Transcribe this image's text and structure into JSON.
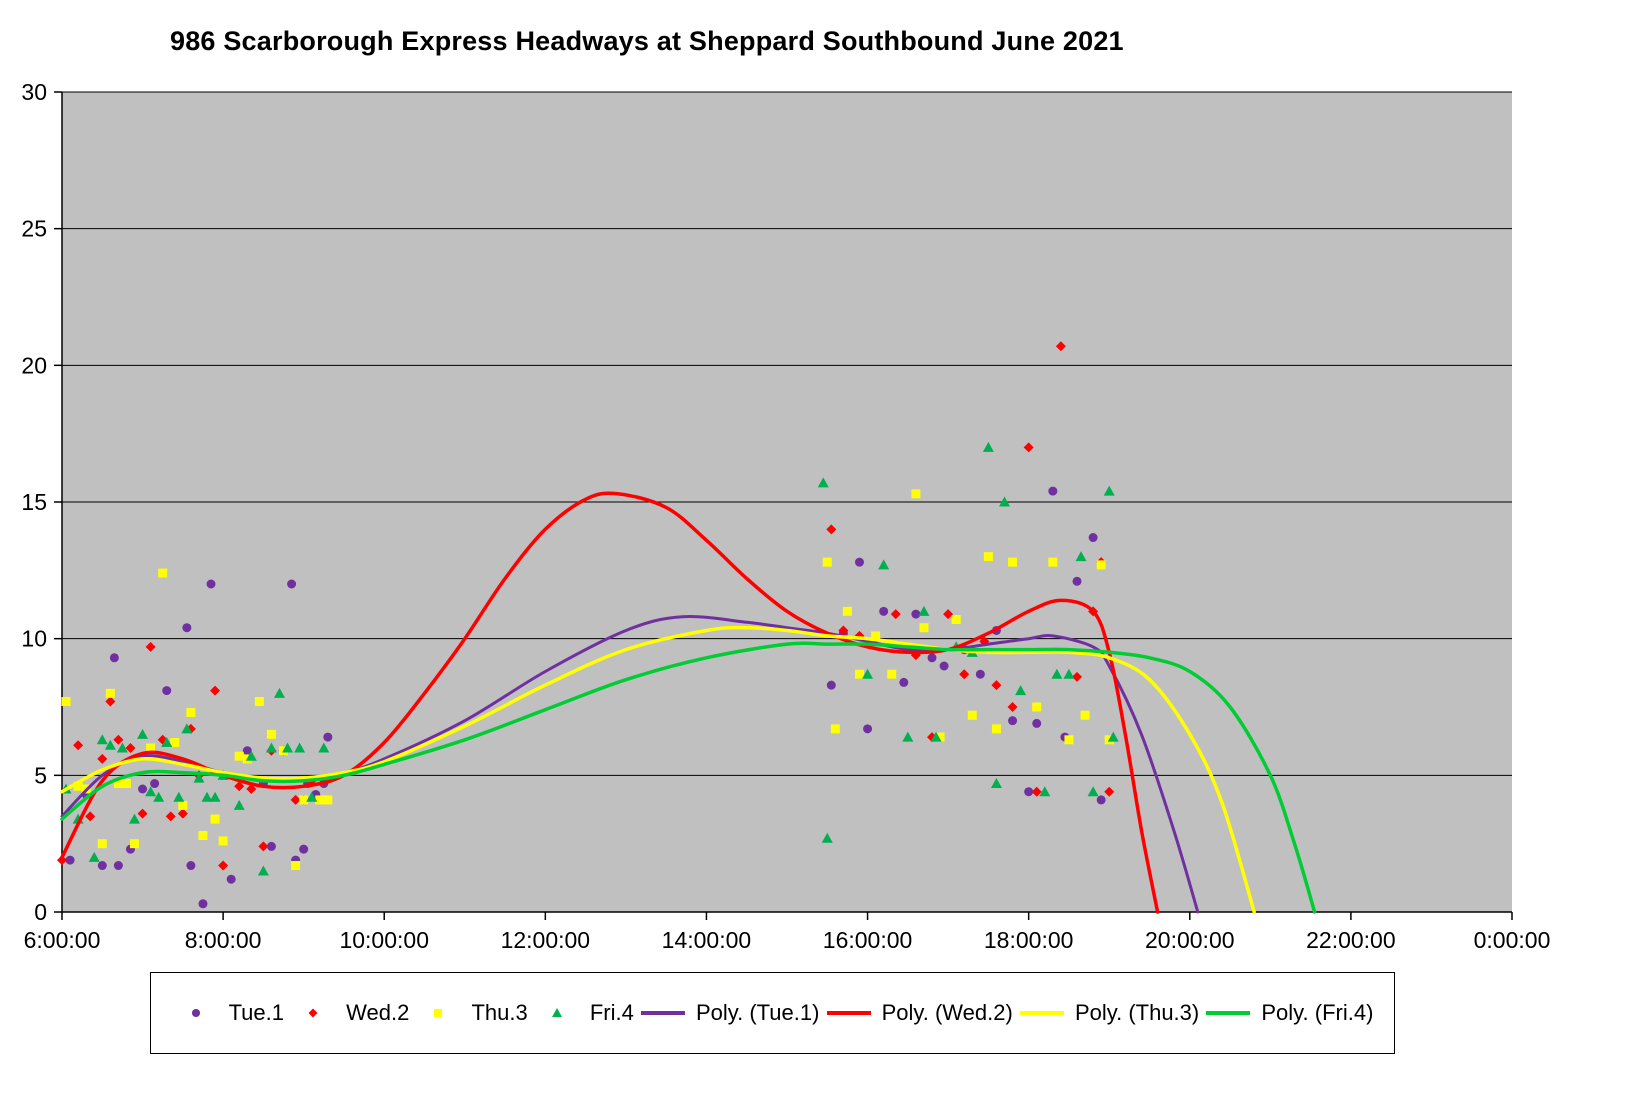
{
  "title": "986 Scarborough Express Headways at Sheppard Southbound June 2021",
  "chart_data": {
    "type": "scatter",
    "title": "986 Scarborough Express Headways at Sheppard Southbound June 2021",
    "xlabel": "",
    "ylabel": "",
    "xlim": [
      6,
      24
    ],
    "ylim": [
      0,
      30
    ],
    "grid": true,
    "plot_background": "#C0C0C0",
    "gridline_color": "#000000",
    "legend_position": "bottom",
    "x_ticks": [
      {
        "value": 6,
        "label": "6:00:00"
      },
      {
        "value": 8,
        "label": "8:00:00"
      },
      {
        "value": 10,
        "label": "10:00:00"
      },
      {
        "value": 12,
        "label": "12:00:00"
      },
      {
        "value": 14,
        "label": "14:00:00"
      },
      {
        "value": 16,
        "label": "16:00:00"
      },
      {
        "value": 18,
        "label": "18:00:00"
      },
      {
        "value": 20,
        "label": "20:00:00"
      },
      {
        "value": 22,
        "label": "22:00:00"
      },
      {
        "value": 24,
        "label": "0:00:00"
      }
    ],
    "y_ticks": [
      0,
      5,
      10,
      15,
      20,
      25,
      30
    ],
    "series": [
      {
        "id": "tue1",
        "label": "Tue.1",
        "marker": "circle",
        "color": "#7030A0",
        "points": [
          [
            6.1,
            1.9
          ],
          [
            6.3,
            4.3
          ],
          [
            6.5,
            1.7
          ],
          [
            6.65,
            9.3
          ],
          [
            6.7,
            1.7
          ],
          [
            6.85,
            2.3
          ],
          [
            7.0,
            4.5
          ],
          [
            7.15,
            4.7
          ],
          [
            7.3,
            8.1
          ],
          [
            7.55,
            10.4
          ],
          [
            7.6,
            1.7
          ],
          [
            7.75,
            0.3
          ],
          [
            7.85,
            12.0
          ],
          [
            8.1,
            1.2
          ],
          [
            8.3,
            5.9
          ],
          [
            8.5,
            4.7
          ],
          [
            8.6,
            2.4
          ],
          [
            8.85,
            12.0
          ],
          [
            8.9,
            1.9
          ],
          [
            9.0,
            2.3
          ],
          [
            9.05,
            4.7
          ],
          [
            9.15,
            4.3
          ],
          [
            9.25,
            4.7
          ],
          [
            9.3,
            6.4
          ],
          [
            15.55,
            8.3
          ],
          [
            15.7,
            10.2
          ],
          [
            15.9,
            12.8
          ],
          [
            16.0,
            6.7
          ],
          [
            16.2,
            11.0
          ],
          [
            16.45,
            8.4
          ],
          [
            16.6,
            10.9
          ],
          [
            16.8,
            9.3
          ],
          [
            16.95,
            9.0
          ],
          [
            17.2,
            9.6
          ],
          [
            17.4,
            8.7
          ],
          [
            17.6,
            10.3
          ],
          [
            17.8,
            7.0
          ],
          [
            18.0,
            4.4
          ],
          [
            18.1,
            6.9
          ],
          [
            18.3,
            15.4
          ],
          [
            18.45,
            6.4
          ],
          [
            18.6,
            12.1
          ],
          [
            18.8,
            13.7
          ],
          [
            18.9,
            4.1
          ]
        ]
      },
      {
        "id": "wed2",
        "label": "Wed.2",
        "marker": "diamond",
        "color": "#FF0000",
        "points": [
          [
            6.0,
            1.9
          ],
          [
            6.2,
            6.1
          ],
          [
            6.35,
            3.5
          ],
          [
            6.5,
            5.6
          ],
          [
            6.6,
            7.7
          ],
          [
            6.7,
            6.3
          ],
          [
            6.85,
            6.0
          ],
          [
            7.0,
            3.6
          ],
          [
            7.1,
            9.7
          ],
          [
            7.25,
            6.3
          ],
          [
            7.35,
            3.5
          ],
          [
            7.5,
            3.6
          ],
          [
            7.6,
            6.7
          ],
          [
            7.7,
            5.0
          ],
          [
            7.9,
            8.1
          ],
          [
            8.0,
            1.7
          ],
          [
            8.2,
            4.6
          ],
          [
            8.35,
            4.5
          ],
          [
            8.5,
            2.4
          ],
          [
            8.6,
            5.9
          ],
          [
            8.75,
            5.9
          ],
          [
            8.9,
            4.1
          ],
          [
            9.0,
            4.1
          ],
          [
            9.1,
            4.8
          ],
          [
            15.55,
            14.0
          ],
          [
            15.7,
            10.3
          ],
          [
            15.9,
            10.1
          ],
          [
            16.1,
            10.0
          ],
          [
            16.35,
            10.9
          ],
          [
            16.6,
            9.4
          ],
          [
            16.8,
            6.4
          ],
          [
            17.0,
            10.9
          ],
          [
            17.2,
            8.7
          ],
          [
            17.45,
            9.9
          ],
          [
            17.6,
            8.3
          ],
          [
            17.8,
            7.5
          ],
          [
            18.0,
            17.0
          ],
          [
            18.1,
            4.4
          ],
          [
            18.4,
            20.7
          ],
          [
            18.6,
            8.6
          ],
          [
            18.8,
            11.0
          ],
          [
            18.9,
            12.8
          ],
          [
            19.0,
            4.4
          ]
        ]
      },
      {
        "id": "thu3",
        "label": "Thu.3",
        "marker": "square",
        "color": "#FFFF00",
        "points": [
          [
            6.05,
            7.7
          ],
          [
            6.2,
            4.6
          ],
          [
            6.3,
            4.5
          ],
          [
            6.5,
            2.5
          ],
          [
            6.6,
            8.0
          ],
          [
            6.7,
            4.7
          ],
          [
            6.8,
            4.7
          ],
          [
            6.9,
            2.5
          ],
          [
            7.1,
            6.0
          ],
          [
            7.25,
            12.4
          ],
          [
            7.4,
            6.2
          ],
          [
            7.5,
            3.9
          ],
          [
            7.6,
            7.3
          ],
          [
            7.75,
            2.8
          ],
          [
            7.9,
            3.4
          ],
          [
            8.0,
            2.6
          ],
          [
            8.2,
            5.7
          ],
          [
            8.3,
            5.6
          ],
          [
            8.45,
            7.7
          ],
          [
            8.6,
            6.5
          ],
          [
            8.75,
            5.9
          ],
          [
            8.9,
            1.7
          ],
          [
            9.0,
            4.1
          ],
          [
            9.2,
            4.1
          ],
          [
            9.3,
            4.1
          ],
          [
            15.5,
            12.8
          ],
          [
            15.6,
            6.7
          ],
          [
            15.75,
            11.0
          ],
          [
            15.9,
            8.7
          ],
          [
            16.1,
            10.1
          ],
          [
            16.3,
            8.7
          ],
          [
            16.6,
            15.3
          ],
          [
            16.7,
            10.4
          ],
          [
            16.9,
            6.4
          ],
          [
            17.1,
            10.7
          ],
          [
            17.3,
            7.2
          ],
          [
            17.5,
            13.0
          ],
          [
            17.6,
            6.7
          ],
          [
            17.8,
            12.8
          ],
          [
            18.1,
            7.5
          ],
          [
            18.3,
            12.8
          ],
          [
            18.5,
            6.3
          ],
          [
            18.7,
            7.2
          ],
          [
            18.9,
            12.7
          ],
          [
            19.0,
            6.3
          ]
        ]
      },
      {
        "id": "fri4",
        "label": "Fri.4",
        "marker": "triangle",
        "color": "#00B050",
        "points": [
          [
            6.05,
            4.5
          ],
          [
            6.2,
            3.4
          ],
          [
            6.4,
            2.0
          ],
          [
            6.5,
            6.3
          ],
          [
            6.6,
            6.1
          ],
          [
            6.75,
            6.0
          ],
          [
            6.9,
            3.4
          ],
          [
            7.0,
            6.5
          ],
          [
            7.1,
            4.4
          ],
          [
            7.2,
            4.2
          ],
          [
            7.3,
            6.2
          ],
          [
            7.45,
            4.2
          ],
          [
            7.55,
            6.7
          ],
          [
            7.7,
            4.9
          ],
          [
            7.8,
            4.2
          ],
          [
            7.9,
            4.2
          ],
          [
            8.0,
            5.0
          ],
          [
            8.2,
            3.9
          ],
          [
            8.35,
            5.7
          ],
          [
            8.5,
            1.5
          ],
          [
            8.6,
            6.0
          ],
          [
            8.7,
            8.0
          ],
          [
            8.8,
            6.0
          ],
          [
            8.95,
            6.0
          ],
          [
            9.1,
            4.2
          ],
          [
            9.25,
            6.0
          ],
          [
            15.45,
            15.7
          ],
          [
            15.5,
            2.7
          ],
          [
            16.0,
            8.7
          ],
          [
            16.2,
            12.7
          ],
          [
            16.5,
            6.4
          ],
          [
            16.7,
            11.0
          ],
          [
            16.85,
            6.4
          ],
          [
            17.1,
            9.7
          ],
          [
            17.3,
            9.5
          ],
          [
            17.5,
            17.0
          ],
          [
            17.6,
            4.7
          ],
          [
            17.7,
            15.0
          ],
          [
            17.9,
            8.1
          ],
          [
            18.2,
            4.4
          ],
          [
            18.35,
            8.7
          ],
          [
            18.5,
            8.7
          ],
          [
            18.65,
            13.0
          ],
          [
            18.8,
            4.4
          ],
          [
            19.0,
            15.4
          ],
          [
            19.05,
            6.4
          ]
        ]
      }
    ],
    "trendlines": [
      {
        "id": "poly-tue1",
        "label": "Poly. (Tue.1)",
        "color": "#7030A0",
        "width": 3,
        "points": [
          [
            6.0,
            3.5
          ],
          [
            6.5,
            5.0
          ],
          [
            7.0,
            5.7
          ],
          [
            7.5,
            5.5
          ],
          [
            8.0,
            5.1
          ],
          [
            8.5,
            4.9
          ],
          [
            9.0,
            4.9
          ],
          [
            9.5,
            5.1
          ],
          [
            10.0,
            5.6
          ],
          [
            11.0,
            7.0
          ],
          [
            12.0,
            8.8
          ],
          [
            13.0,
            10.3
          ],
          [
            13.7,
            10.8
          ],
          [
            14.5,
            10.6
          ],
          [
            15.0,
            10.4
          ],
          [
            15.5,
            10.2
          ],
          [
            16.0,
            9.9
          ],
          [
            16.5,
            9.6
          ],
          [
            17.0,
            9.6
          ],
          [
            17.5,
            9.8
          ],
          [
            18.0,
            10.0
          ],
          [
            18.3,
            10.1
          ],
          [
            18.8,
            9.7
          ],
          [
            19.0,
            9.0
          ],
          [
            19.4,
            6.5
          ],
          [
            19.8,
            3.0
          ],
          [
            20.1,
            0.0
          ]
        ]
      },
      {
        "id": "poly-wed2",
        "label": "Poly. (Wed.2)",
        "color": "#FF0000",
        "width": 3.5,
        "points": [
          [
            6.0,
            2.0
          ],
          [
            6.5,
            4.8
          ],
          [
            7.0,
            5.8
          ],
          [
            7.5,
            5.6
          ],
          [
            8.0,
            5.0
          ],
          [
            8.5,
            4.6
          ],
          [
            9.0,
            4.6
          ],
          [
            9.5,
            5.0
          ],
          [
            10.0,
            6.2
          ],
          [
            10.5,
            8.0
          ],
          [
            11.0,
            10.0
          ],
          [
            11.5,
            12.2
          ],
          [
            12.0,
            14.0
          ],
          [
            12.5,
            15.1
          ],
          [
            12.9,
            15.3
          ],
          [
            13.5,
            14.8
          ],
          [
            14.0,
            13.6
          ],
          [
            14.5,
            12.2
          ],
          [
            15.0,
            11.0
          ],
          [
            15.5,
            10.2
          ],
          [
            16.0,
            9.7
          ],
          [
            16.5,
            9.5
          ],
          [
            17.0,
            9.6
          ],
          [
            17.5,
            10.2
          ],
          [
            18.0,
            11.0
          ],
          [
            18.4,
            11.4
          ],
          [
            18.8,
            11.0
          ],
          [
            19.0,
            9.5
          ],
          [
            19.2,
            6.5
          ],
          [
            19.4,
            3.0
          ],
          [
            19.6,
            0.0
          ]
        ]
      },
      {
        "id": "poly-thu3",
        "label": "Poly. (Thu.3)",
        "color": "#FFFF00",
        "width": 3.5,
        "points": [
          [
            6.0,
            4.4
          ],
          [
            6.5,
            5.2
          ],
          [
            7.0,
            5.6
          ],
          [
            7.5,
            5.4
          ],
          [
            8.0,
            5.1
          ],
          [
            8.5,
            4.9
          ],
          [
            9.0,
            4.9
          ],
          [
            9.5,
            5.1
          ],
          [
            10.0,
            5.5
          ],
          [
            11.0,
            6.8
          ],
          [
            12.0,
            8.3
          ],
          [
            13.0,
            9.6
          ],
          [
            14.0,
            10.3
          ],
          [
            14.5,
            10.4
          ],
          [
            15.0,
            10.3
          ],
          [
            15.5,
            10.1
          ],
          [
            16.0,
            10.0
          ],
          [
            16.5,
            9.8
          ],
          [
            17.0,
            9.6
          ],
          [
            17.5,
            9.5
          ],
          [
            18.0,
            9.5
          ],
          [
            18.5,
            9.5
          ],
          [
            19.0,
            9.3
          ],
          [
            19.5,
            8.5
          ],
          [
            20.0,
            6.5
          ],
          [
            20.4,
            4.0
          ],
          [
            20.8,
            0.0
          ]
        ]
      },
      {
        "id": "poly-fri4",
        "label": "Poly. (Fri.4)",
        "color": "#00CC33",
        "width": 3.5,
        "points": [
          [
            6.0,
            3.4
          ],
          [
            6.5,
            4.6
          ],
          [
            7.0,
            5.1
          ],
          [
            7.5,
            5.1
          ],
          [
            8.0,
            5.0
          ],
          [
            8.5,
            4.8
          ],
          [
            9.0,
            4.8
          ],
          [
            9.5,
            5.0
          ],
          [
            10.0,
            5.4
          ],
          [
            11.0,
            6.3
          ],
          [
            12.0,
            7.4
          ],
          [
            13.0,
            8.5
          ],
          [
            14.0,
            9.3
          ],
          [
            15.0,
            9.8
          ],
          [
            15.5,
            9.8
          ],
          [
            16.0,
            9.8
          ],
          [
            16.5,
            9.7
          ],
          [
            17.0,
            9.6
          ],
          [
            17.5,
            9.6
          ],
          [
            18.0,
            9.6
          ],
          [
            18.5,
            9.6
          ],
          [
            19.0,
            9.5
          ],
          [
            19.5,
            9.3
          ],
          [
            20.0,
            8.8
          ],
          [
            20.5,
            7.5
          ],
          [
            21.0,
            5.0
          ],
          [
            21.3,
            2.5
          ],
          [
            21.55,
            0.0
          ]
        ]
      }
    ]
  }
}
